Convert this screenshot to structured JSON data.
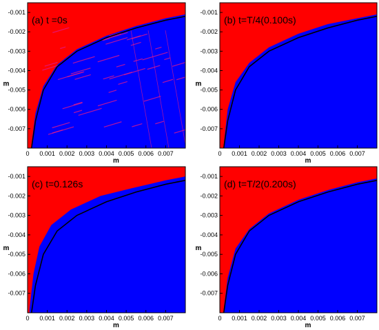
{
  "colors": {
    "upper_region": "#ff0000",
    "lower_region": "#0000ff",
    "interface_line": "#000000",
    "noise": "#e01a8a",
    "axis": "#000000"
  },
  "chart_data": [
    {
      "type": "heatmap",
      "panel_label": "(a)  t =0s",
      "xlabel": "m",
      "ylabel": "m",
      "xlim": [
        0,
        0.008
      ],
      "ylim": [
        -0.008,
        -0.0005
      ],
      "xticks": [
        0,
        0.001,
        0.002,
        0.003,
        0.004,
        0.005,
        0.006,
        0.007
      ],
      "xticklabels": [
        "0",
        "0.001",
        "0.002",
        "0.003",
        "0.004",
        "0.005",
        "0.006",
        "0.007"
      ],
      "yticks": [
        -0.001,
        -0.002,
        -0.003,
        -0.004,
        -0.005,
        -0.006,
        -0.007
      ],
      "yticklabels": [
        "-0.001",
        "-0.002",
        "-0.003",
        "-0.004",
        "-0.005",
        "-0.006",
        "-0.007"
      ],
      "regions": [
        "upper (red)",
        "lower (blue)"
      ],
      "noise": true,
      "interface_curve": {
        "x": [
          0.0002,
          0.0004,
          0.0008,
          0.0015,
          0.0025,
          0.004,
          0.0055,
          0.007,
          0.008
        ],
        "y": [
          -0.0078,
          -0.0062,
          -0.0048,
          -0.0037,
          -0.0029,
          -0.0022,
          -0.0017,
          -0.0013,
          -0.0011
        ]
      },
      "black_curve": {
        "x": [
          0.0002,
          0.0004,
          0.0008,
          0.0015,
          0.0025,
          0.004,
          0.0055,
          0.007,
          0.008
        ],
        "y": [
          -0.008,
          -0.0066,
          -0.005,
          -0.0038,
          -0.003,
          -0.0023,
          -0.0018,
          -0.0014,
          -0.0012
        ]
      }
    },
    {
      "type": "heatmap",
      "panel_label": "(b)  t=T/4(0.100s)",
      "xlabel": "m",
      "ylabel": "m",
      "xlim": [
        0,
        0.008
      ],
      "ylim": [
        -0.008,
        -0.0005
      ],
      "xticks": [
        0,
        0.001,
        0.002,
        0.003,
        0.004,
        0.005,
        0.006,
        0.007
      ],
      "xticklabels": [
        "0",
        "0.001",
        "0.002",
        "0.003",
        "0.004",
        "0.005",
        "0.006",
        "0.007"
      ],
      "yticks": [
        -0.001,
        -0.002,
        -0.003,
        -0.004,
        -0.005,
        -0.006,
        -0.007
      ],
      "yticklabels": [
        "-0.001",
        "-0.002",
        "-0.003",
        "-0.004",
        "-0.005",
        "-0.006",
        "-0.007"
      ],
      "regions": [
        "upper (red)",
        "lower (blue)"
      ],
      "noise": false,
      "interface_curve": {
        "x": [
          0.0002,
          0.0004,
          0.0008,
          0.0015,
          0.0025,
          0.004,
          0.0055,
          0.007,
          0.008
        ],
        "y": [
          -0.0078,
          -0.006,
          -0.0046,
          -0.0036,
          -0.0028,
          -0.0021,
          -0.0016,
          -0.0013,
          -0.0011
        ]
      },
      "black_curve": {
        "x": [
          0.0002,
          0.0004,
          0.0008,
          0.0015,
          0.0025,
          0.004,
          0.0055,
          0.007,
          0.008
        ],
        "y": [
          -0.008,
          -0.0066,
          -0.005,
          -0.0038,
          -0.003,
          -0.0023,
          -0.0018,
          -0.0014,
          -0.0012
        ]
      }
    },
    {
      "type": "heatmap",
      "panel_label": "(c)  t=0.126s",
      "xlabel": "m",
      "ylabel": "m",
      "xlim": [
        0,
        0.008
      ],
      "ylim": [
        -0.008,
        -0.0005
      ],
      "xticks": [
        0,
        0.001,
        0.002,
        0.003,
        0.004,
        0.005,
        0.006,
        0.007
      ],
      "xticklabels": [
        "0",
        "0.001",
        "0.002",
        "0.003",
        "0.004",
        "0.005",
        "0.006",
        "0.007"
      ],
      "yticks": [
        -0.001,
        -0.002,
        -0.003,
        -0.004,
        -0.005,
        -0.006,
        -0.007
      ],
      "yticklabels": [
        "-0.001",
        "-0.002",
        "-0.003",
        "-0.004",
        "-0.005",
        "-0.006",
        "-0.007"
      ],
      "regions": [
        "upper (red)",
        "lower (blue)"
      ],
      "noise": false,
      "interface_curve": {
        "x": [
          0.0001,
          0.0003,
          0.0006,
          0.0012,
          0.0022,
          0.0037,
          0.0053,
          0.007,
          0.008
        ],
        "y": [
          -0.0078,
          -0.006,
          -0.0046,
          -0.0035,
          -0.0027,
          -0.002,
          -0.0016,
          -0.0012,
          -0.001
        ]
      },
      "black_curve": {
        "x": [
          0.0002,
          0.0004,
          0.0008,
          0.0015,
          0.0025,
          0.004,
          0.0055,
          0.007,
          0.008
        ],
        "y": [
          -0.008,
          -0.0066,
          -0.005,
          -0.0038,
          -0.003,
          -0.0023,
          -0.0018,
          -0.0014,
          -0.0012
        ]
      }
    },
    {
      "type": "heatmap",
      "panel_label": "(d)  t=T/2(0.200s)",
      "xlabel": "m",
      "ylabel": "m",
      "xlim": [
        0,
        0.008
      ],
      "ylim": [
        -0.008,
        -0.0005
      ],
      "xticks": [
        0,
        0.001,
        0.002,
        0.003,
        0.004,
        0.005,
        0.006,
        0.007
      ],
      "xticklabels": [
        "0",
        "0.001",
        "0.002",
        "0.003",
        "0.004",
        "0.005",
        "0.006",
        "0.007"
      ],
      "yticks": [
        -0.001,
        -0.002,
        -0.003,
        -0.004,
        -0.005,
        -0.006,
        -0.007
      ],
      "yticklabels": [
        "-0.001",
        "-0.002",
        "-0.003",
        "-0.004",
        "-0.005",
        "-0.006",
        "-0.007"
      ],
      "regions": [
        "upper (red)",
        "lower (blue)"
      ],
      "noise": false,
      "interface_curve": {
        "x": [
          0.0002,
          0.0004,
          0.0008,
          0.0015,
          0.0025,
          0.004,
          0.0055,
          0.007,
          0.008
        ],
        "y": [
          -0.0078,
          -0.0062,
          -0.0047,
          -0.0037,
          -0.0029,
          -0.0022,
          -0.0017,
          -0.0013,
          -0.0011
        ]
      },
      "black_curve": {
        "x": [
          0.0002,
          0.0004,
          0.0008,
          0.0015,
          0.0025,
          0.004,
          0.0055,
          0.007,
          0.008
        ],
        "y": [
          -0.008,
          -0.0066,
          -0.005,
          -0.0038,
          -0.003,
          -0.0023,
          -0.0018,
          -0.0014,
          -0.0012
        ]
      }
    }
  ]
}
